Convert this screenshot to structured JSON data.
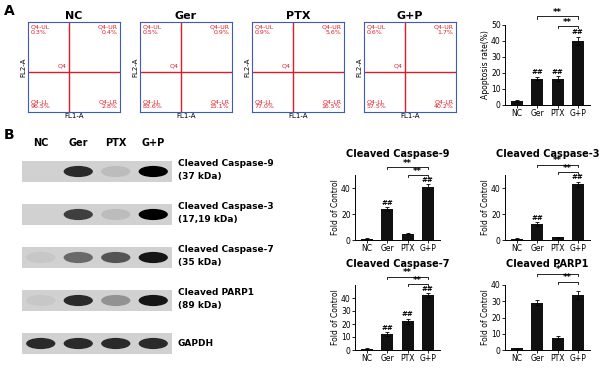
{
  "panel_labels": [
    "A",
    "B"
  ],
  "chart_data": [
    {
      "type": "quadrant",
      "title": "NC",
      "xlabel": "FL1-A",
      "ylabel": "FL2-A",
      "gate": "Q4",
      "tick_labels": false,
      "color": "#e01b24",
      "quadrants": [
        {
          "name": "Q4-UL",
          "value": 0.3,
          "value_label": "0.3%"
        },
        {
          "name": "Q4-UR",
          "value": 0.4,
          "value_label": "0.4%"
        },
        {
          "name": "Q4-LL",
          "value": 96.5,
          "value_label": "96.5%"
        },
        {
          "name": "Q4-LR",
          "value": 2.8,
          "value_label": "2.8%"
        }
      ]
    },
    {
      "type": "quadrant",
      "title": "Ger",
      "xlabel": "FL1-A",
      "ylabel": "FL2-A",
      "gate": "Q4",
      "tick_labels": false,
      "color": "#e01b24",
      "quadrants": [
        {
          "name": "Q4-UL",
          "value": 0.5,
          "value_label": "0.5%"
        },
        {
          "name": "Q4-UR",
          "value": 0.9,
          "value_label": "0.9%"
        },
        {
          "name": "Q4-LL",
          "value": 83.6,
          "value_label": "83.6%"
        },
        {
          "name": "Q4-LR",
          "value": 15.1,
          "value_label": "15.1%"
        }
      ]
    },
    {
      "type": "quadrant",
      "title": "PTX",
      "xlabel": "FL1-A",
      "ylabel": "FL2-A",
      "gate": "Q4",
      "tick_labels": false,
      "color": "#e01b24",
      "quadrants": [
        {
          "name": "Q4-UL",
          "value": 0.9,
          "value_label": "0.9%"
        },
        {
          "name": "Q4-UR",
          "value": 5.6,
          "value_label": "5.6%"
        },
        {
          "name": "Q4-LL",
          "value": 77.0,
          "value_label": "77.0%"
        },
        {
          "name": "Q4-LR",
          "value": 16.5,
          "value_label": "16.5%"
        }
      ]
    },
    {
      "type": "quadrant",
      "title": "G+P",
      "xlabel": "FL1-A",
      "ylabel": "FL2-A",
      "gate": "Q4",
      "tick_labels": false,
      "color": "#e01b24",
      "quadrants": [
        {
          "name": "Q4-UL",
          "value": 0.6,
          "value_label": "0.6%"
        },
        {
          "name": "Q4-UR",
          "value": 1.7,
          "value_label": "1.7%"
        },
        {
          "name": "Q4-LL",
          "value": 57.5,
          "value_label": "57.5%"
        },
        {
          "name": "Q4-LR",
          "value": 40.2,
          "value_label": "40.2%"
        }
      ]
    },
    {
      "type": "bar",
      "ylabel": "Apoptosis rate(%)",
      "categories": [
        "NC",
        "Ger",
        "PTX",
        "G+P"
      ],
      "values": [
        2.5,
        16.5,
        16.5,
        40
      ],
      "errors": [
        0.5,
        1.0,
        1.5,
        2.5
      ],
      "color": "#111111",
      "ylim": [
        0,
        50
      ],
      "yticks": [
        0,
        10,
        20,
        30,
        40,
        50
      ],
      "marks": [
        null,
        "##",
        "##",
        "##"
      ],
      "comparisons": [
        {
          "from": "PTX",
          "to": "G+P",
          "label": "**"
        },
        {
          "from": "Ger",
          "to": "G+P",
          "label": "**"
        }
      ]
    },
    {
      "type": "bar",
      "title": "Cleaved Caspase-9",
      "ylabel": "Fold of Control",
      "categories": [
        "NC",
        "Ger",
        "PTX",
        "G+P"
      ],
      "values": [
        1,
        24,
        5,
        41
      ],
      "errors": [
        0.3,
        1.5,
        0.5,
        2.0
      ],
      "color": "#111111",
      "ylim": [
        0,
        50
      ],
      "yticks": [
        0,
        20,
        40
      ],
      "marks": [
        null,
        "##",
        null,
        "##"
      ],
      "comparisons": [
        {
          "from": "PTX",
          "to": "G+P",
          "label": "**"
        },
        {
          "from": "Ger",
          "to": "G+P",
          "label": "**"
        }
      ]
    },
    {
      "type": "bar",
      "title": "Cleaved Caspase-3",
      "ylabel": "Fold of Control",
      "categories": [
        "NC",
        "Ger",
        "PTX",
        "G+P"
      ],
      "values": [
        1,
        12,
        2,
        43
      ],
      "errors": [
        0.3,
        1.5,
        0.4,
        2.0
      ],
      "color": "#111111",
      "ylim": [
        0,
        50
      ],
      "yticks": [
        0,
        20,
        40
      ],
      "marks": [
        null,
        "##",
        null,
        "##"
      ],
      "comparisons": [
        {
          "from": "PTX",
          "to": "G+P",
          "label": "**"
        },
        {
          "from": "Ger",
          "to": "G+P",
          "label": "**"
        }
      ]
    },
    {
      "type": "bar",
      "title": "Cleaved Caspase-7",
      "ylabel": "Fold of Control",
      "categories": [
        "NC",
        "Ger",
        "PTX",
        "G+P"
      ],
      "values": [
        1,
        12,
        22,
        42
      ],
      "errors": [
        0.3,
        1.5,
        2.0,
        1.5
      ],
      "color": "#111111",
      "ylim": [
        0,
        50
      ],
      "yticks": [
        0,
        10,
        20,
        30,
        40
      ],
      "marks": [
        null,
        "##",
        "##",
        "##"
      ],
      "comparisons": [
        {
          "from": "PTX",
          "to": "G+P",
          "label": "**"
        },
        {
          "from": "Ger",
          "to": "G+P",
          "label": "**"
        }
      ]
    },
    {
      "type": "bar",
      "title": "Cleaved PARP1",
      "ylabel": "Fold of Control",
      "categories": [
        "NC",
        "Ger",
        "PTX",
        "G+P"
      ],
      "values": [
        1,
        29,
        7.5,
        34
      ],
      "errors": [
        0.3,
        1.5,
        1.0,
        2.5
      ],
      "color": "#111111",
      "ylim": [
        0,
        40
      ],
      "yticks": [
        0,
        10,
        20,
        30,
        40
      ],
      "marks": [
        null,
        null,
        null,
        null
      ],
      "comparisons": [
        {
          "from": "PTX",
          "to": "G+P",
          "label": "**"
        },
        {
          "from": "Ger",
          "to": "G+P",
          "label": "*"
        }
      ]
    }
  ],
  "western_blot": {
    "lanes": [
      "NC",
      "Ger",
      "PTX",
      "G+P"
    ],
    "rows": [
      {
        "label": "Cleaved Caspase-9",
        "size": "(37 kDa)",
        "band_intensity": [
          0.0,
          0.8,
          0.1,
          1.0
        ]
      },
      {
        "label": "Cleaved Caspase-3",
        "size": "(17,19 kDa)",
        "band_intensity": [
          0.0,
          0.7,
          0.1,
          1.0
        ]
      },
      {
        "label": "Cleaved Caspase-7",
        "size": "(35 kDa)",
        "band_intensity": [
          0.05,
          0.5,
          0.6,
          0.9
        ]
      },
      {
        "label": "Cleaved PARP1",
        "size": "(89 kDa)",
        "band_intensity": [
          0.05,
          0.8,
          0.3,
          0.9
        ]
      },
      {
        "label": "GAPDH",
        "band_intensity": [
          0.8,
          0.8,
          0.8,
          0.8
        ]
      }
    ]
  }
}
